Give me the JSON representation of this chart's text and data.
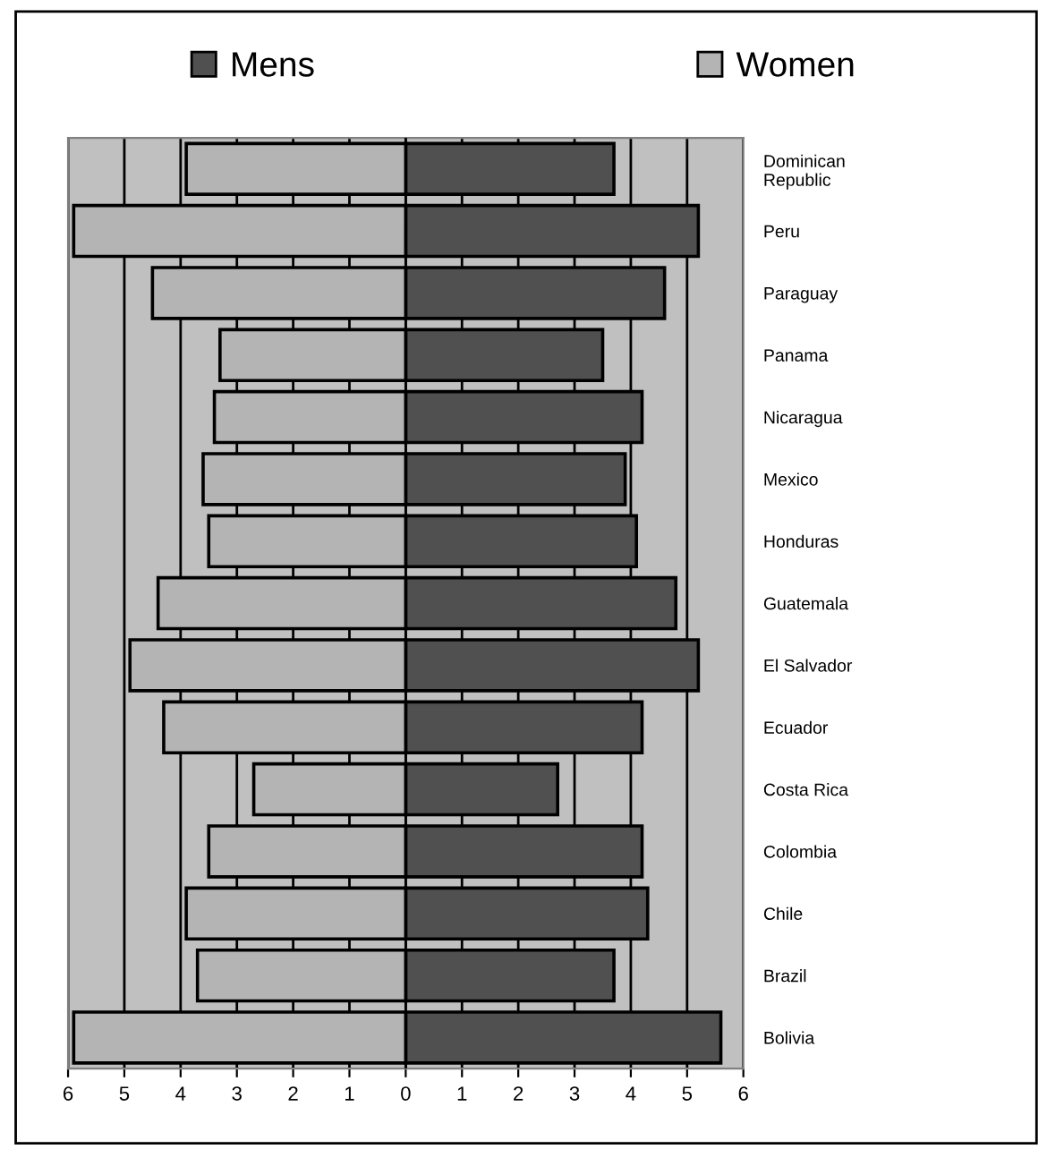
{
  "chart_data": {
    "type": "bar",
    "orientation": "horizontal",
    "categories": [
      "Dominican\nRepublic",
      "Peru",
      "Paraguay",
      "Panama",
      "Nicaragua",
      "Mexico",
      "Honduras",
      "Guatemala",
      "El Salvador",
      "Ecuador",
      "Costa Rica",
      "Colombia",
      "Chile",
      "Brazil",
      "Bolivia"
    ],
    "series": [
      {
        "name": "Mens",
        "color": "#505050",
        "values": [
          3.7,
          5.2,
          4.6,
          3.5,
          4.2,
          3.9,
          4.1,
          4.8,
          5.2,
          4.2,
          2.7,
          4.2,
          4.3,
          3.7,
          5.6
        ]
      },
      {
        "name": "Women",
        "color": "#b4b4b4",
        "values": [
          -3.9,
          -5.9,
          -4.5,
          -3.3,
          -3.4,
          -3.6,
          -3.5,
          -4.4,
          -4.9,
          -4.3,
          -2.7,
          -3.5,
          -3.9,
          -3.7,
          -5.9
        ]
      }
    ],
    "xlim": [
      -6,
      6
    ],
    "xticks": [
      {
        "value": -6,
        "label": "6"
      },
      {
        "value": -5,
        "label": "5"
      },
      {
        "value": -4,
        "label": "4"
      },
      {
        "value": -3,
        "label": "3"
      },
      {
        "value": -2,
        "label": "2"
      },
      {
        "value": -1,
        "label": "1"
      },
      0,
      1,
      2,
      3,
      4,
      5,
      6
    ],
    "grid": "x",
    "legend": "top",
    "stacked": true
  }
}
